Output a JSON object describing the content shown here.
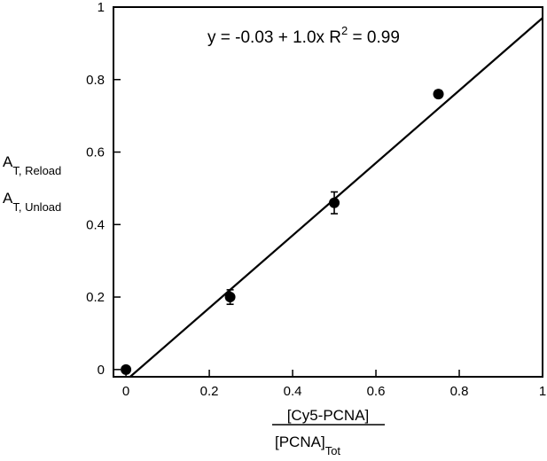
{
  "chart_data": {
    "type": "scatter",
    "annotation": {
      "prefix": "y = -0.03 + 1.0x  R",
      "superscript": "2",
      "suffix": " = 0.99"
    },
    "xlabel": {
      "numerator": "[Cy5-PCNA]",
      "denominator_main": "[PCNA]",
      "denominator_sub": "Tot"
    },
    "ylabel": {
      "numerator_main": "A",
      "numerator_sub": "T, Reload",
      "denominator_main": "A",
      "denominator_sub": "T, Unload"
    },
    "xlim": [
      -0.03,
      1.0
    ],
    "ylim": [
      -0.02,
      1.0
    ],
    "x_ticks": [
      0,
      0.2,
      0.4,
      0.6,
      0.8,
      1
    ],
    "x_tick_labels": [
      "0",
      "0.2",
      "0.4",
      "0.6",
      "0.8",
      "1"
    ],
    "y_ticks": [
      0,
      0.2,
      0.4,
      0.6,
      0.8,
      1
    ],
    "y_tick_labels": [
      "0",
      "0.2",
      "0.4",
      "0.6",
      "0.8",
      "1"
    ],
    "series": [
      {
        "x": [
          0,
          0.25,
          0.5,
          0.75
        ],
        "y": [
          0.0,
          0.2,
          0.46,
          0.76
        ],
        "error": [
          0.005,
          0.02,
          0.03,
          0.01
        ]
      }
    ],
    "fit_line": {
      "intercept": -0.03,
      "slope": 1.0
    },
    "grid": false
  }
}
